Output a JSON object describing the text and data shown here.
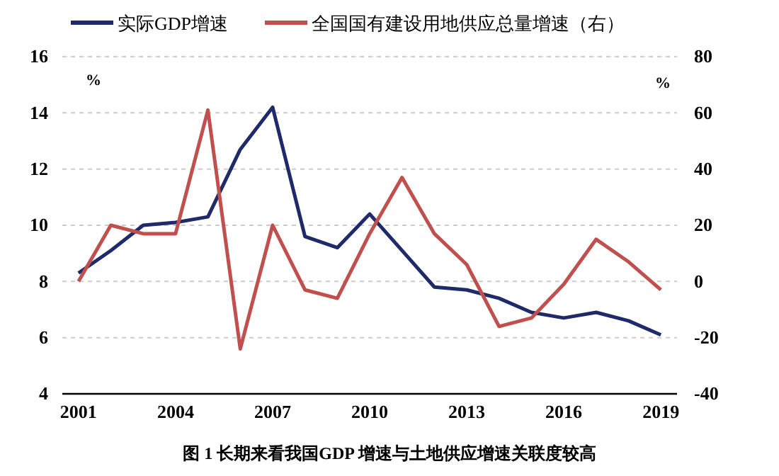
{
  "chart_data": {
    "type": "line",
    "x": [
      2001,
      2002,
      2003,
      2004,
      2005,
      2006,
      2007,
      2008,
      2009,
      2010,
      2011,
      2012,
      2013,
      2014,
      2015,
      2016,
      2017,
      2018,
      2019
    ],
    "xlim": [
      2000.5,
      2019.5
    ],
    "xticks": [
      2001,
      2004,
      2007,
      2010,
      2013,
      2016,
      2019
    ],
    "ylim": [
      4,
      16
    ],
    "yticks": [
      4,
      6,
      8,
      10,
      12,
      14,
      16
    ],
    "y2lim": [
      -40,
      80
    ],
    "y2ticks": [
      -40,
      -20,
      0,
      20,
      40,
      60,
      80
    ],
    "ylabel": "%",
    "y2label": "%",
    "grid": "y",
    "legend": "top",
    "line_style": "solid",
    "marker": "none",
    "series": [
      {
        "name": "实际GDP增速",
        "color": "#1f2a6b",
        "values": [
          8.3,
          9.1,
          10.0,
          10.1,
          10.3,
          12.7,
          14.2,
          9.6,
          9.2,
          10.4,
          9.1,
          7.8,
          7.7,
          7.4,
          6.9,
          6.7,
          6.9,
          6.6,
          6.1
        ]
      },
      {
        "name": "全国国有建设用地供应总量增速（右）",
        "color": "#c0504d",
        "axis": "y2",
        "values": [
          0,
          20,
          17,
          17,
          61,
          -24,
          20,
          -3,
          -6,
          17,
          37,
          17,
          6,
          -16,
          -13,
          -1,
          15,
          7,
          -3
        ]
      }
    ],
    "annotations": [
      "图 1 长期来看我国GDP 增速与土地供应增速关联度较高"
    ]
  }
}
